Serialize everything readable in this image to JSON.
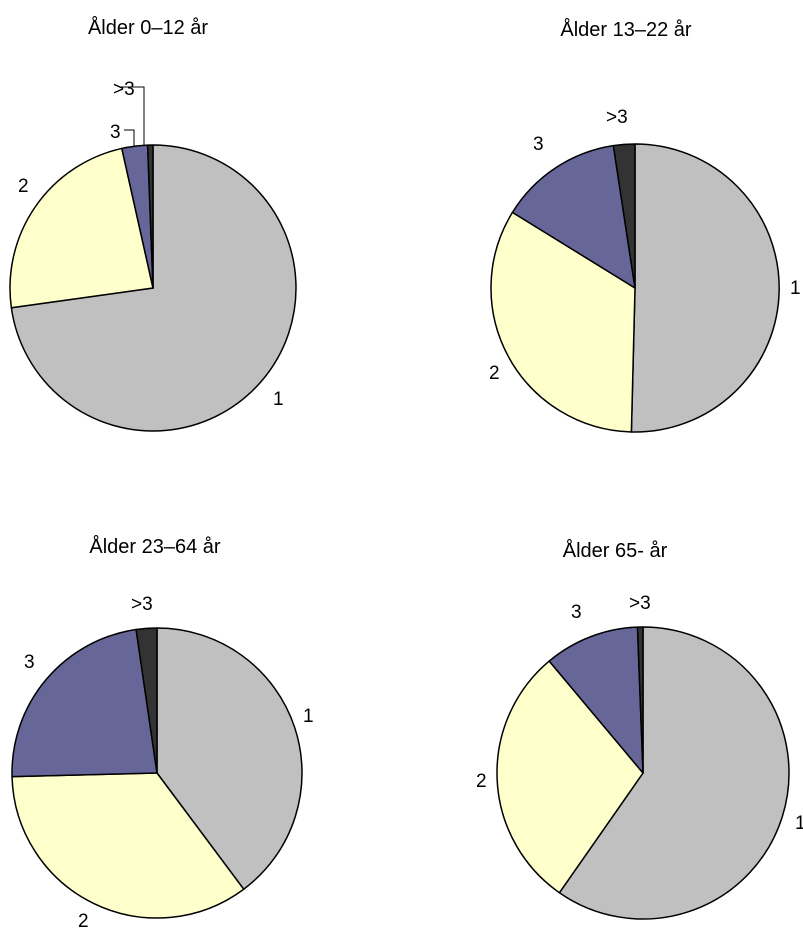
{
  "chart_data": [
    {
      "type": "pie",
      "title": "Ålder 0–12 år",
      "categories": [
        "1",
        "2",
        "3",
        ">3"
      ],
      "values": [
        72.8,
        23.7,
        2.9,
        0.6
      ],
      "colors": [
        "#c0c0c0",
        "#ffffcc",
        "#666699",
        "#333333"
      ]
    },
    {
      "type": "pie",
      "title": "Ålder 13–22 år",
      "categories": [
        "1",
        "2",
        "3",
        ">3"
      ],
      "values": [
        50.4,
        33.4,
        13.8,
        2.4
      ],
      "colors": [
        "#c0c0c0",
        "#ffffcc",
        "#666699",
        "#333333"
      ]
    },
    {
      "type": "pie",
      "title": "Ålder 23–64 år",
      "categories": [
        "1",
        "2",
        "3",
        ">3"
      ],
      "values": [
        39.8,
        34.8,
        23.1,
        2.3
      ],
      "colors": [
        "#c0c0c0",
        "#ffffcc",
        "#666699",
        "#333333"
      ]
    },
    {
      "type": "pie",
      "title": "Ålder 65- år",
      "categories": [
        "1",
        "2",
        "3",
        ">3"
      ],
      "values": [
        59.7,
        29.2,
        10.5,
        0.6
      ],
      "colors": [
        "#c0c0c0",
        "#ffffcc",
        "#666699",
        "#333333"
      ]
    }
  ]
}
